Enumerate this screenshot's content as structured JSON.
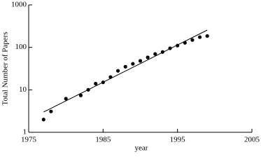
{
  "chart_data": {
    "type": "scatter",
    "x_label": "year",
    "y_label": "Total Number of Papers",
    "x": [
      1977,
      1978,
      1980,
      1982,
      1983,
      1984,
      1985,
      1986,
      1987,
      1988,
      1989,
      1990,
      1991,
      1992,
      1993,
      1994,
      1995,
      1996,
      1997,
      1998,
      1999
    ],
    "values": [
      2,
      3.1,
      6.2,
      7.4,
      10,
      14,
      15,
      20,
      28,
      35,
      41,
      48,
      58,
      70,
      78,
      95,
      110,
      128,
      149,
      174,
      185
    ],
    "color": "#000000",
    "fit_x": [
      1977,
      1999
    ],
    "fit_values": [
      3,
      255
    ],
    "xlim": [
      1975,
      2005
    ],
    "xticks": [
      1975,
      1985,
      1995,
      2005
    ],
    "ylim": [
      1,
      1000
    ],
    "yticks": [
      1,
      10,
      100,
      1000
    ],
    "log_y": true
  }
}
